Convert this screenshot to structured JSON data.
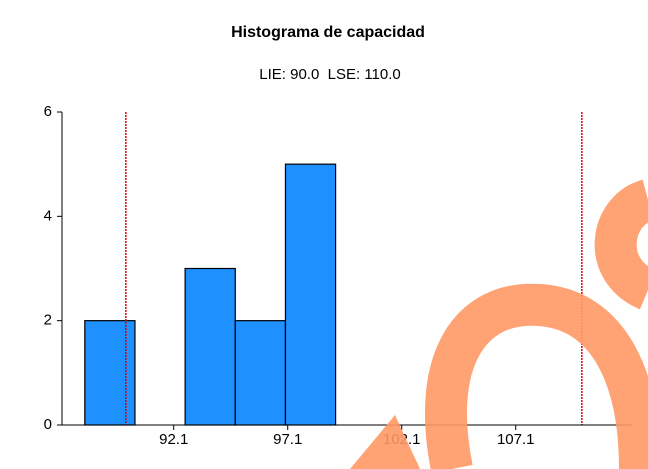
{
  "chart_data": {
    "type": "histogram",
    "title": "Histograma de capacidad",
    "subtitle": "LIE: 90.0  LSE: 110.0",
    "bins": [
      88.2,
      90.4,
      92.6,
      94.8,
      97.0,
      99.2
    ],
    "values": [
      2,
      0,
      3,
      2,
      5
    ],
    "color": "#1e90ff",
    "xlim": [
      87.2,
      112.2
    ],
    "xticks": [
      92.1,
      97.1,
      102.1,
      107.1
    ],
    "ylim": [
      0,
      6
    ],
    "yticks": [
      0,
      2,
      4,
      6
    ],
    "reference_lines": [
      {
        "value": 90,
        "color": "#e00000"
      },
      {
        "value": 110,
        "color": "#e00000"
      }
    ]
  }
}
